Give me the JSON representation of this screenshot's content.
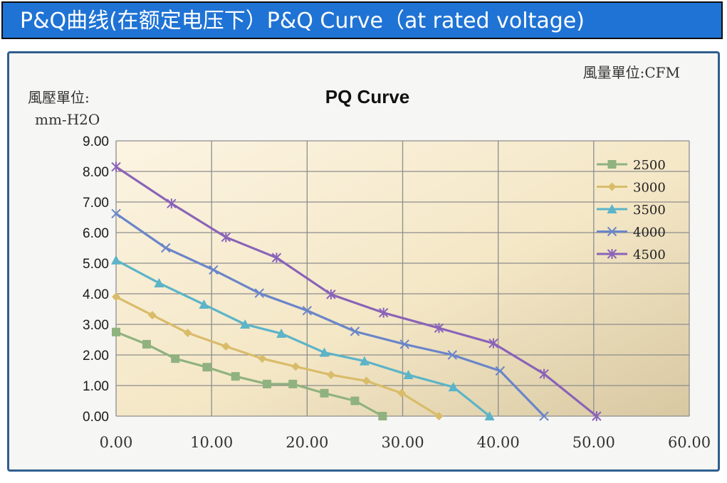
{
  "header": {
    "title": "P&Q曲线(在额定电压下）P&Q Curve（at rated voltage)"
  },
  "chart_data": {
    "type": "line",
    "title": "PQ Curve",
    "ylabel_line1": "風壓單位:",
    "ylabel_line2": "mm-H2O",
    "xlabel_note": "風量單位:CFM",
    "xlim": [
      0,
      60
    ],
    "ylim": [
      0,
      9
    ],
    "x_ticks": [
      "0.00",
      "10.00",
      "20.00",
      "30.00",
      "40.00",
      "50.00",
      "60.00"
    ],
    "y_ticks": [
      "0.00",
      "1.00",
      "2.00",
      "3.00",
      "4.00",
      "5.00",
      "6.00",
      "7.00",
      "8.00",
      "9.00"
    ],
    "grid": true,
    "legend_position": "top-right",
    "series": [
      {
        "name": "2500",
        "color": "#8fb27f",
        "marker": "square",
        "points": [
          [
            0,
            2.75
          ],
          [
            3.2,
            2.35
          ],
          [
            6.2,
            1.88
          ],
          [
            9.5,
            1.6
          ],
          [
            12.5,
            1.3
          ],
          [
            15.8,
            1.05
          ],
          [
            18.5,
            1.05
          ],
          [
            21.8,
            0.75
          ],
          [
            25,
            0.5
          ],
          [
            27.9,
            0
          ]
        ]
      },
      {
        "name": "3000",
        "color": "#d9bc6a",
        "marker": "diamond",
        "points": [
          [
            0,
            3.9
          ],
          [
            3.8,
            3.3
          ],
          [
            7.5,
            2.72
          ],
          [
            11.5,
            2.28
          ],
          [
            15.3,
            1.88
          ],
          [
            18.8,
            1.62
          ],
          [
            22.5,
            1.35
          ],
          [
            26.2,
            1.15
          ],
          [
            29.9,
            0.75
          ],
          [
            33.8,
            0
          ]
        ]
      },
      {
        "name": "3500",
        "color": "#5cb4c8",
        "marker": "triangle",
        "points": [
          [
            0,
            5.1
          ],
          [
            4.5,
            4.35
          ],
          [
            9.2,
            3.65
          ],
          [
            13.5,
            3.0
          ],
          [
            17.3,
            2.7
          ],
          [
            21.8,
            2.08
          ],
          [
            26,
            1.8
          ],
          [
            30.6,
            1.35
          ],
          [
            35.3,
            0.95
          ],
          [
            39.1,
            0
          ]
        ]
      },
      {
        "name": "4000",
        "color": "#6a85c9",
        "marker": "x",
        "points": [
          [
            0,
            6.62
          ],
          [
            5.2,
            5.5
          ],
          [
            10.2,
            4.78
          ],
          [
            15,
            4.02
          ],
          [
            20,
            3.45
          ],
          [
            25,
            2.77
          ],
          [
            30.2,
            2.35
          ],
          [
            35.2,
            2.0
          ],
          [
            40.2,
            1.48
          ],
          [
            44.8,
            0
          ]
        ]
      },
      {
        "name": "4500",
        "color": "#8a63b8",
        "marker": "star",
        "points": [
          [
            0,
            8.15
          ],
          [
            5.8,
            6.95
          ],
          [
            11.5,
            5.85
          ],
          [
            16.8,
            5.18
          ],
          [
            22.5,
            3.98
          ],
          [
            28,
            3.38
          ],
          [
            33.8,
            2.88
          ],
          [
            39.5,
            2.38
          ],
          [
            44.8,
            1.38
          ],
          [
            50.3,
            0
          ]
        ]
      }
    ]
  }
}
